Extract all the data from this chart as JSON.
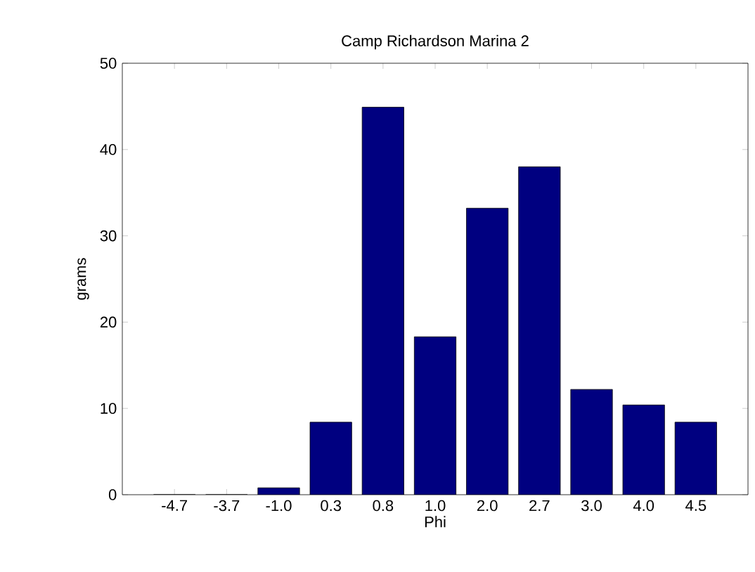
{
  "chart_data": {
    "type": "bar",
    "title": "Camp Richardson Marina 2",
    "xlabel": "Phi",
    "ylabel": "grams",
    "categories": [
      "-4.7",
      "-3.7",
      "-1.0",
      "0.3",
      "0.8",
      "1.0",
      "2.0",
      "2.7",
      "3.0",
      "4.0",
      "4.5"
    ],
    "values": [
      0,
      0,
      0.8,
      8.4,
      44.9,
      18.3,
      33.2,
      38.0,
      12.2,
      10.4,
      8.4
    ],
    "color": "#000080",
    "ylim": [
      0,
      50
    ],
    "yticks": [
      0,
      10,
      20,
      30,
      40,
      50
    ],
    "grid": false
  }
}
